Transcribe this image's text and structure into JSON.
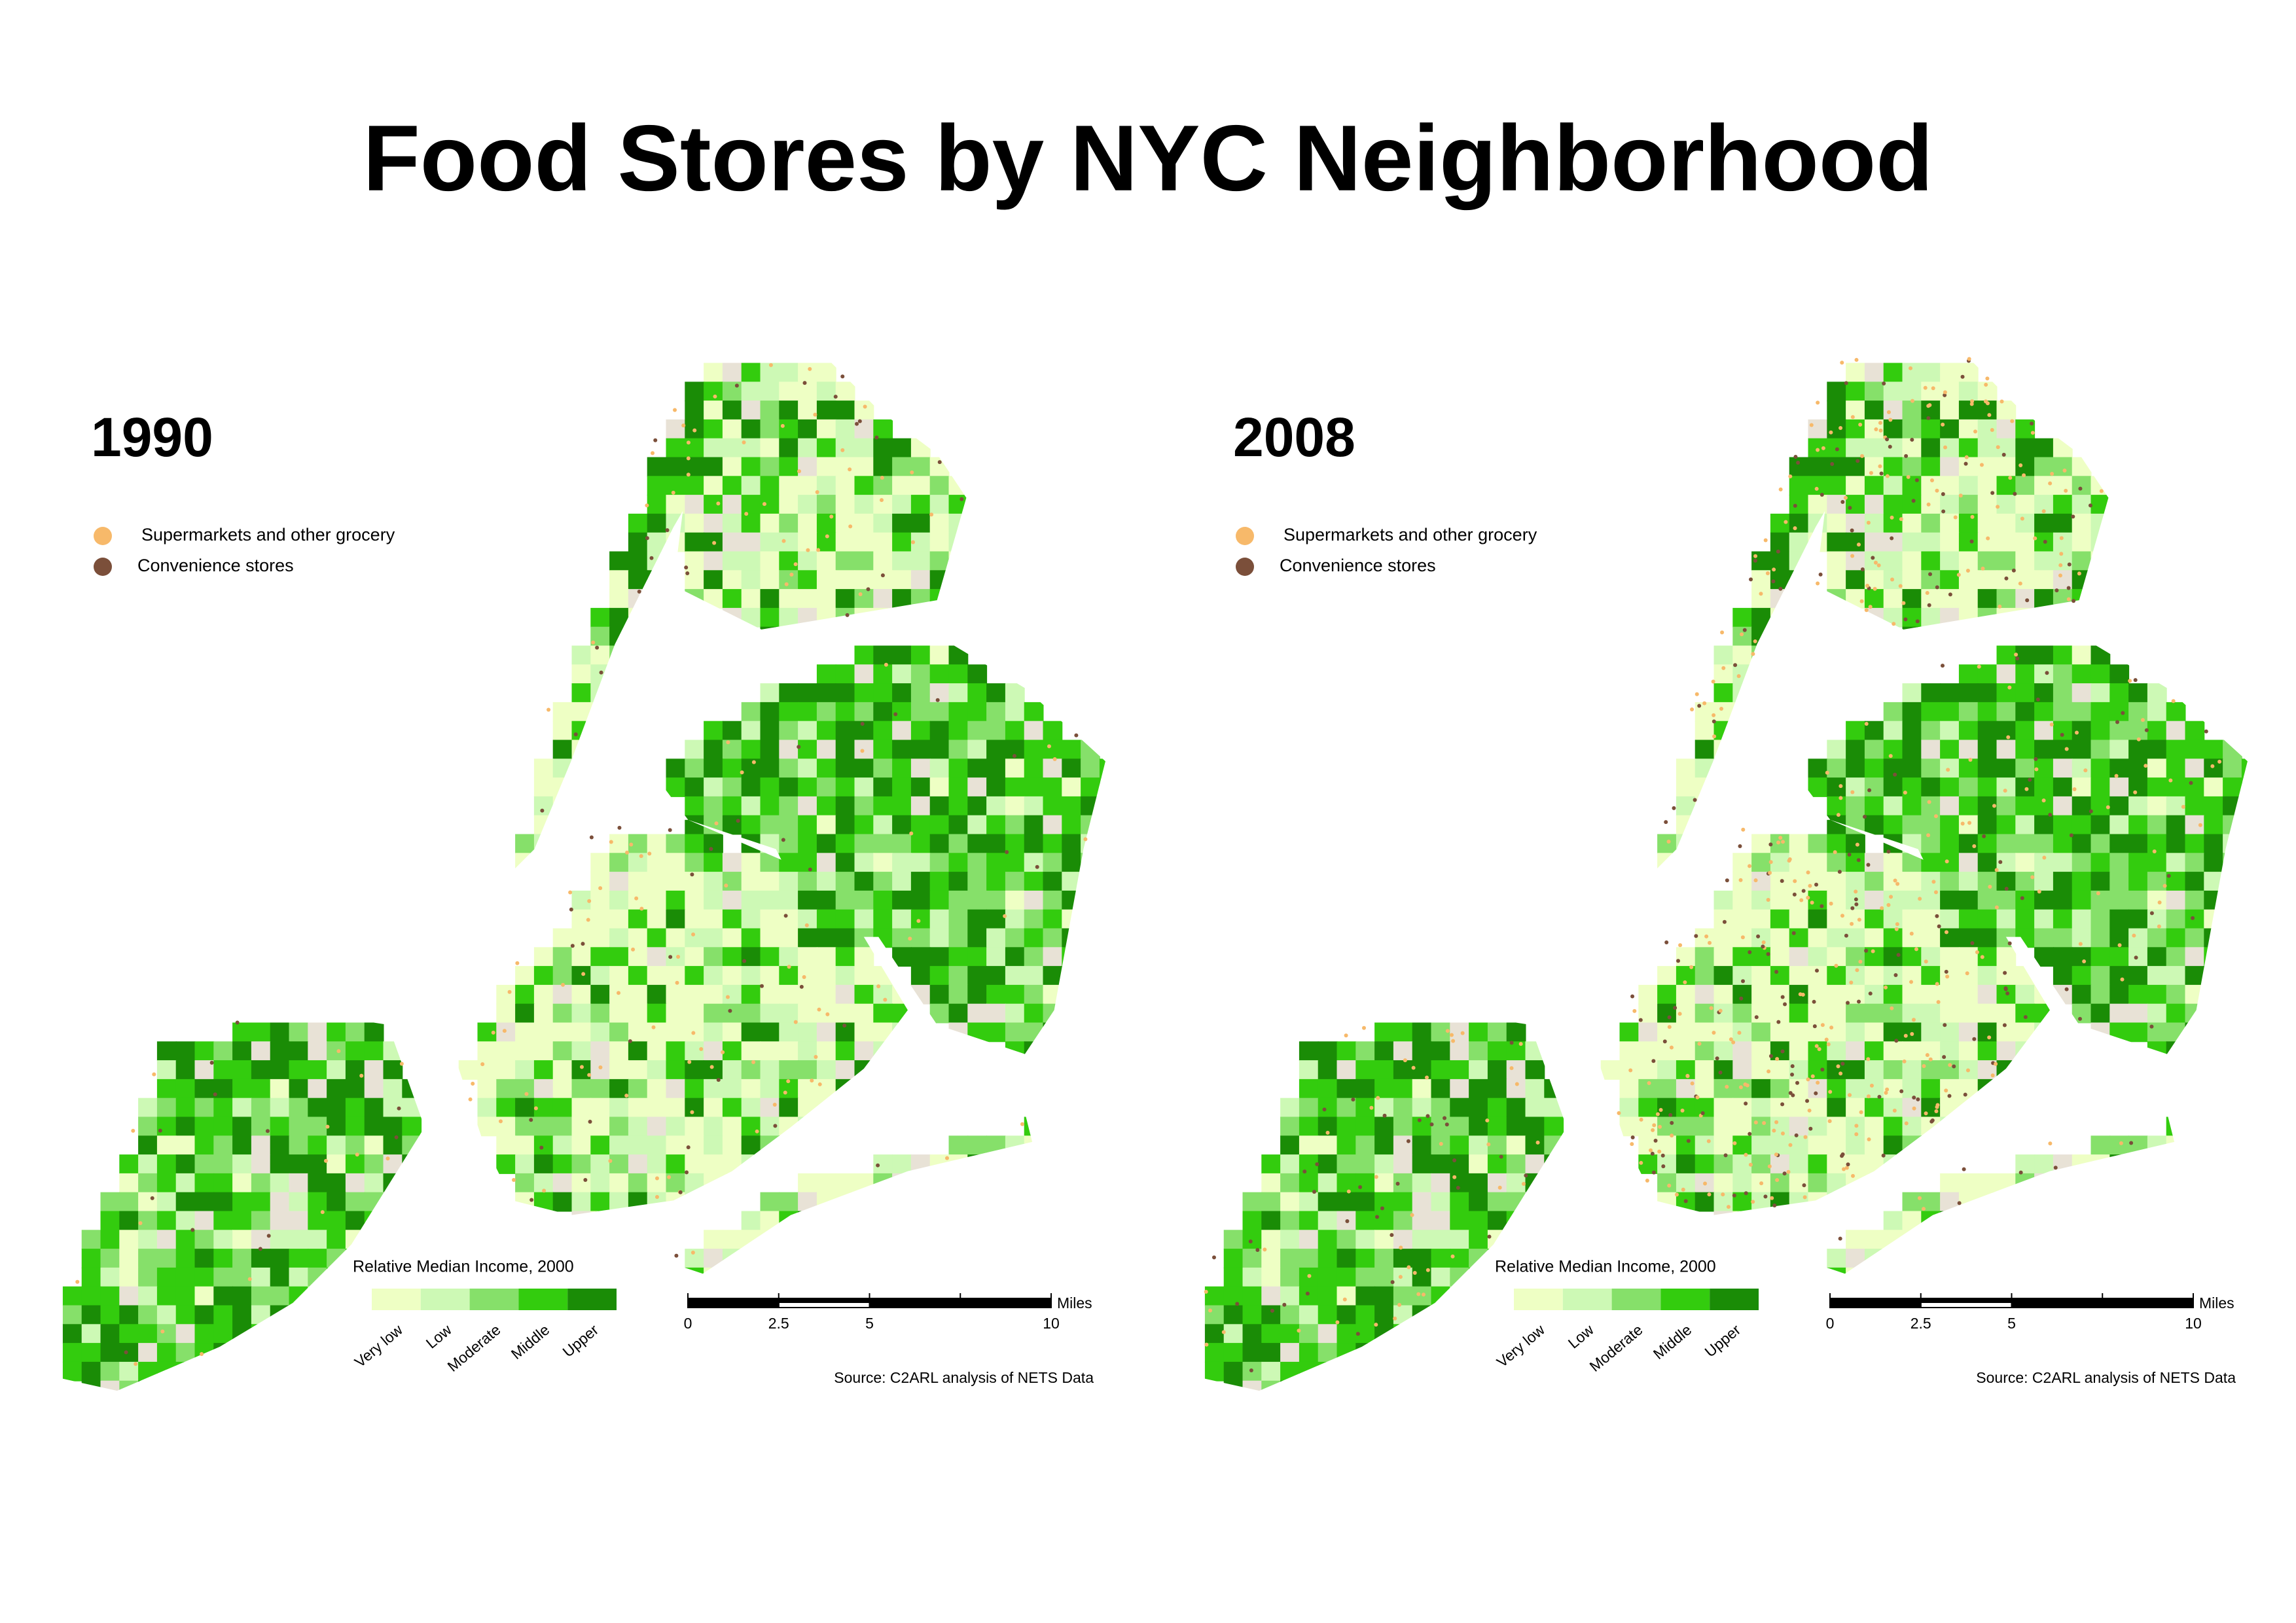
{
  "title": "Food Stores by NYC Neighborhood",
  "panels": [
    {
      "year": "1990",
      "store_legend": [
        {
          "label": "Supermarkets and other grocery",
          "color": "#f7b96a"
        },
        {
          "label": "Convenience stores",
          "color": "#7b4f3a"
        }
      ],
      "income_legend": {
        "title": "Relative Median Income, 2000",
        "classes": [
          {
            "label": "Very low",
            "color": "#eeffc4"
          },
          {
            "label": "Low",
            "color": "#cdf9b5"
          },
          {
            "label": "Moderate",
            "color": "#86e06a"
          },
          {
            "label": "Middle",
            "color": "#33cc0e"
          },
          {
            "label": "Upper",
            "color": "#1a8c06"
          }
        ]
      },
      "scale_bar": {
        "ticks": [
          "0",
          "2.5",
          "5",
          "10"
        ],
        "unit": "Miles"
      },
      "source": "Source: C2ARL analysis of NETS Data"
    },
    {
      "year": "2008",
      "store_legend": [
        {
          "label": "Supermarkets and other grocery",
          "color": "#f7b96a"
        },
        {
          "label": "Convenience stores",
          "color": "#7b4f3a"
        }
      ],
      "income_legend": {
        "title": "Relative Median Income, 2000",
        "classes": [
          {
            "label": "Very low",
            "color": "#eeffc4"
          },
          {
            "label": "Low",
            "color": "#cdf9b5"
          },
          {
            "label": "Moderate",
            "color": "#86e06a"
          },
          {
            "label": "Middle",
            "color": "#33cc0e"
          },
          {
            "label": "Upper",
            "color": "#1a8c06"
          }
        ]
      },
      "scale_bar": {
        "ticks": [
          "0",
          "2.5",
          "5",
          "10"
        ],
        "unit": "Miles"
      },
      "source": "Source: C2ARL analysis of NETS Data"
    }
  ]
}
